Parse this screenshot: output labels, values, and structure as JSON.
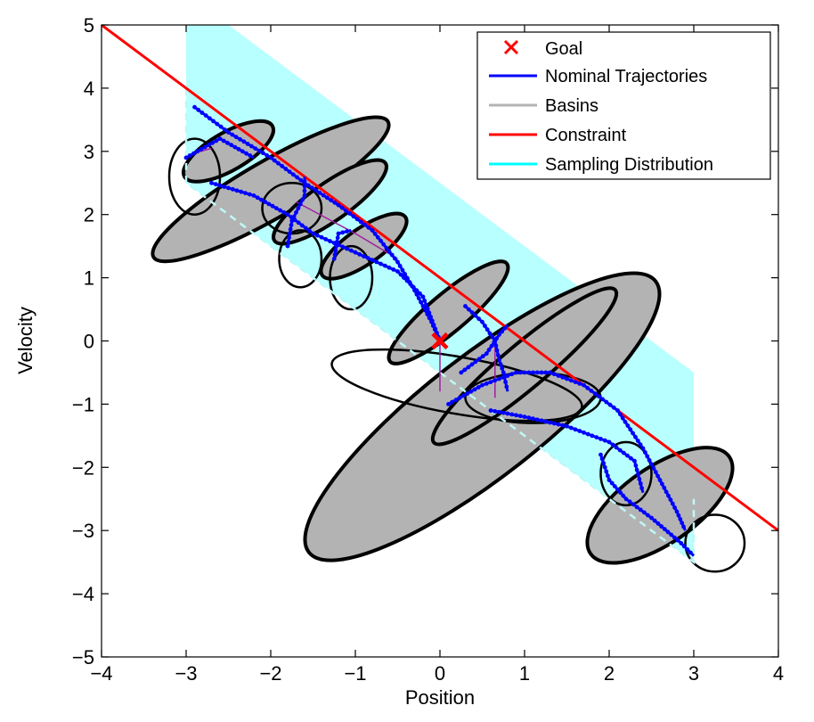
{
  "chart_data": {
    "type": "scatter",
    "title": "",
    "xlabel": "Position",
    "ylabel": "Velocity",
    "xlim": [
      -4,
      4
    ],
    "ylim": [
      -5,
      5
    ],
    "xticks": [
      -4,
      -3,
      -2,
      -1,
      0,
      1,
      2,
      3,
      4
    ],
    "yticks": [
      -5,
      -4,
      -3,
      -2,
      -1,
      0,
      1,
      2,
      3,
      4,
      5
    ],
    "xtick_labels": [
      "−4",
      "−3",
      "−2",
      "−1",
      "0",
      "1",
      "2",
      "3",
      "4"
    ],
    "ytick_labels": [
      "−5",
      "−4",
      "−3",
      "−2",
      "−1",
      "0",
      "1",
      "2",
      "3",
      "4",
      "5"
    ],
    "grid": false,
    "legend_position": "top-right",
    "legend": [
      {
        "label": "Goal",
        "marker": "x",
        "color": "#ff0000"
      },
      {
        "label": "Nominal Trajectories",
        "color": "#0000ff"
      },
      {
        "label": "Basins",
        "color": "#b3b3b3"
      },
      {
        "label": "Constraint",
        "color": "#ff0000"
      },
      {
        "label": "Sampling Distribution",
        "color": "#00ffff"
      }
    ],
    "goal": {
      "x": 0,
      "y": 0
    },
    "constraint": {
      "points": [
        [
          -4,
          5
        ],
        [
          4,
          -3
        ]
      ]
    },
    "sampling_distribution": {
      "outline": [
        [
          -3,
          5
        ],
        [
          -2.5,
          5
        ],
        [
          3,
          -0.5
        ],
        [
          3,
          -3.5
        ],
        [
          -3,
          2.5
        ]
      ]
    },
    "basins": [
      {
        "cx": 0.5,
        "cy": -1.2,
        "rx": 2.6,
        "ry": 0.95,
        "angle_deg": -38
      },
      {
        "cx": -2.0,
        "cy": 2.4,
        "rx": 1.6,
        "ry": 0.45,
        "angle_deg": -30
      },
      {
        "cx": -1.3,
        "cy": 2.2,
        "rx": 0.8,
        "ry": 0.3,
        "angle_deg": -35
      },
      {
        "cx": 2.6,
        "cy": -2.6,
        "rx": 1.0,
        "ry": 0.6,
        "angle_deg": -35
      },
      {
        "cx": 1.0,
        "cy": -0.4,
        "rx": 1.4,
        "ry": 0.35,
        "angle_deg": -40
      },
      {
        "cx": 0.1,
        "cy": 0.45,
        "rx": 0.9,
        "ry": 0.3,
        "angle_deg": -40
      },
      {
        "cx": -2.5,
        "cy": 3.0,
        "rx": 0.6,
        "ry": 0.3,
        "angle_deg": -30
      },
      {
        "cx": -0.9,
        "cy": 1.5,
        "rx": 0.6,
        "ry": 0.28,
        "angle_deg": -35
      }
    ],
    "ellipses": [
      {
        "cx": -2.9,
        "cy": 2.6,
        "rx": 0.3,
        "ry": 0.6,
        "angle_deg": 0
      },
      {
        "cx": -1.75,
        "cy": 2.1,
        "rx": 0.35,
        "ry": 0.4,
        "angle_deg": 0
      },
      {
        "cx": -1.65,
        "cy": 1.3,
        "rx": 0.25,
        "ry": 0.45,
        "angle_deg": 0
      },
      {
        "cx": -1.05,
        "cy": 1.0,
        "rx": 0.25,
        "ry": 0.5,
        "angle_deg": 0
      },
      {
        "cx": 0.2,
        "cy": -0.7,
        "rx": 1.5,
        "ry": 0.45,
        "angle_deg": 10
      },
      {
        "cx": 1.1,
        "cy": -0.9,
        "rx": 0.8,
        "ry": 0.4,
        "angle_deg": 0
      },
      {
        "cx": 2.2,
        "cy": -2.1,
        "rx": 0.3,
        "ry": 0.5,
        "angle_deg": 0
      },
      {
        "cx": 3.25,
        "cy": -3.2,
        "rx": 0.35,
        "ry": 0.45,
        "angle_deg": 0
      }
    ],
    "nominal_trajectories": [
      {
        "points": [
          [
            -2.9,
            3.7
          ],
          [
            -2.5,
            3.3
          ],
          [
            -2.0,
            2.9
          ],
          [
            -1.6,
            2.5
          ],
          [
            -1.2,
            2.15
          ],
          [
            -0.8,
            1.75
          ],
          [
            -0.5,
            1.25
          ],
          [
            -0.3,
            0.8
          ],
          [
            -0.1,
            0.3
          ],
          [
            0,
            0
          ]
        ]
      },
      {
        "points": [
          [
            -2.7,
            2.5
          ],
          [
            -2.2,
            2.3
          ],
          [
            -1.8,
            2.0
          ],
          [
            -1.5,
            1.7
          ],
          [
            -1.0,
            1.4
          ],
          [
            -0.5,
            1.1
          ],
          [
            -0.2,
            0.7
          ],
          [
            0,
            0
          ]
        ]
      },
      {
        "points": [
          [
            -3.0,
            2.9
          ],
          [
            -2.6,
            3.2
          ],
          [
            -2.2,
            2.9
          ]
        ]
      },
      {
        "points": [
          [
            -1.8,
            1.5
          ],
          [
            -1.75,
            1.9
          ],
          [
            -1.6,
            2.3
          ],
          [
            -1.6,
            2.6
          ]
        ]
      },
      {
        "points": [
          [
            -1.25,
            1.3
          ],
          [
            -1.2,
            1.7
          ],
          [
            -1.05,
            1.75
          ]
        ]
      },
      {
        "points": [
          [
            0.3,
            0.55
          ],
          [
            0.5,
            0.3
          ],
          [
            0.65,
            0.0
          ],
          [
            0.7,
            -0.3
          ],
          [
            0.75,
            -0.5
          ],
          [
            0.8,
            -0.8
          ]
        ]
      },
      {
        "points": [
          [
            0.1,
            -1.0
          ],
          [
            0.5,
            -0.7
          ],
          [
            0.9,
            -0.5
          ],
          [
            1.3,
            -0.5
          ],
          [
            1.7,
            -0.7
          ],
          [
            2.1,
            -1.1
          ],
          [
            2.4,
            -1.7
          ],
          [
            2.6,
            -2.2
          ],
          [
            2.8,
            -2.7
          ],
          [
            2.9,
            -3.0
          ]
        ]
      },
      {
        "points": [
          [
            0.6,
            -1.1
          ],
          [
            1.0,
            -1.2
          ],
          [
            1.5,
            -1.35
          ],
          [
            2.0,
            -1.6
          ],
          [
            2.3,
            -1.9
          ],
          [
            2.4,
            -2.4
          ]
        ]
      },
      {
        "points": [
          [
            1.9,
            -1.8
          ],
          [
            2.0,
            -2.2
          ],
          [
            2.2,
            -2.5
          ],
          [
            2.5,
            -2.8
          ],
          [
            2.85,
            -3.2
          ],
          [
            3.0,
            -3.4
          ]
        ]
      },
      {
        "points": [
          [
            0.25,
            -0.5
          ],
          [
            0.55,
            -0.2
          ],
          [
            0.7,
            0.1
          ],
          [
            0.8,
            0.25
          ]
        ]
      }
    ],
    "connectors": [
      {
        "points": [
          [
            0,
            0
          ],
          [
            0,
            -0.8
          ]
        ]
      },
      {
        "points": [
          [
            0.65,
            -0.1
          ],
          [
            0.65,
            -0.9
          ]
        ]
      },
      {
        "points": [
          [
            -2.95,
            2.95
          ],
          [
            -2.7,
            3.05
          ]
        ]
      },
      {
        "points": [
          [
            -1.7,
            2.2
          ],
          [
            -1.0,
            1.7
          ],
          [
            -0.5,
            1.3
          ]
        ]
      }
    ],
    "sampling_boundary_dashed": [
      [
        -3,
        4.0
      ],
      [
        -3,
        2.5
      ],
      [
        3,
        -3.5
      ],
      [
        3,
        -2.5
      ]
    ]
  }
}
